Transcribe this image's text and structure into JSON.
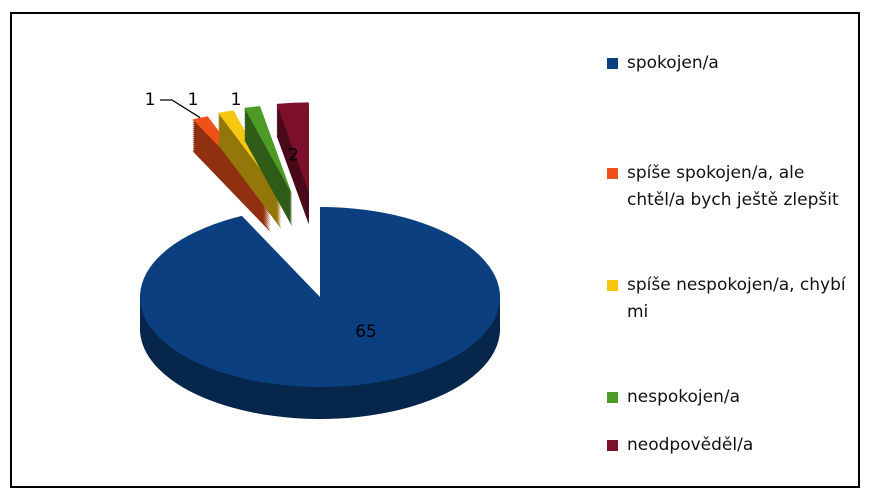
{
  "chart_data": {
    "type": "pie",
    "categories": [
      "spokojen/a",
      "spíše spokojen/a, ale chtěl/a bych ještě zlepšit",
      "spíše nespokojen/a, chybí mi",
      "nespokojen/a",
      "neodpověděl/a"
    ],
    "values": [
      65,
      1,
      1,
      1,
      2
    ],
    "colors": [
      "#0b3f7f",
      "#f0501a",
      "#f5c710",
      "#4e9a26",
      "#7c0f2a"
    ],
    "legend": "right"
  }
}
